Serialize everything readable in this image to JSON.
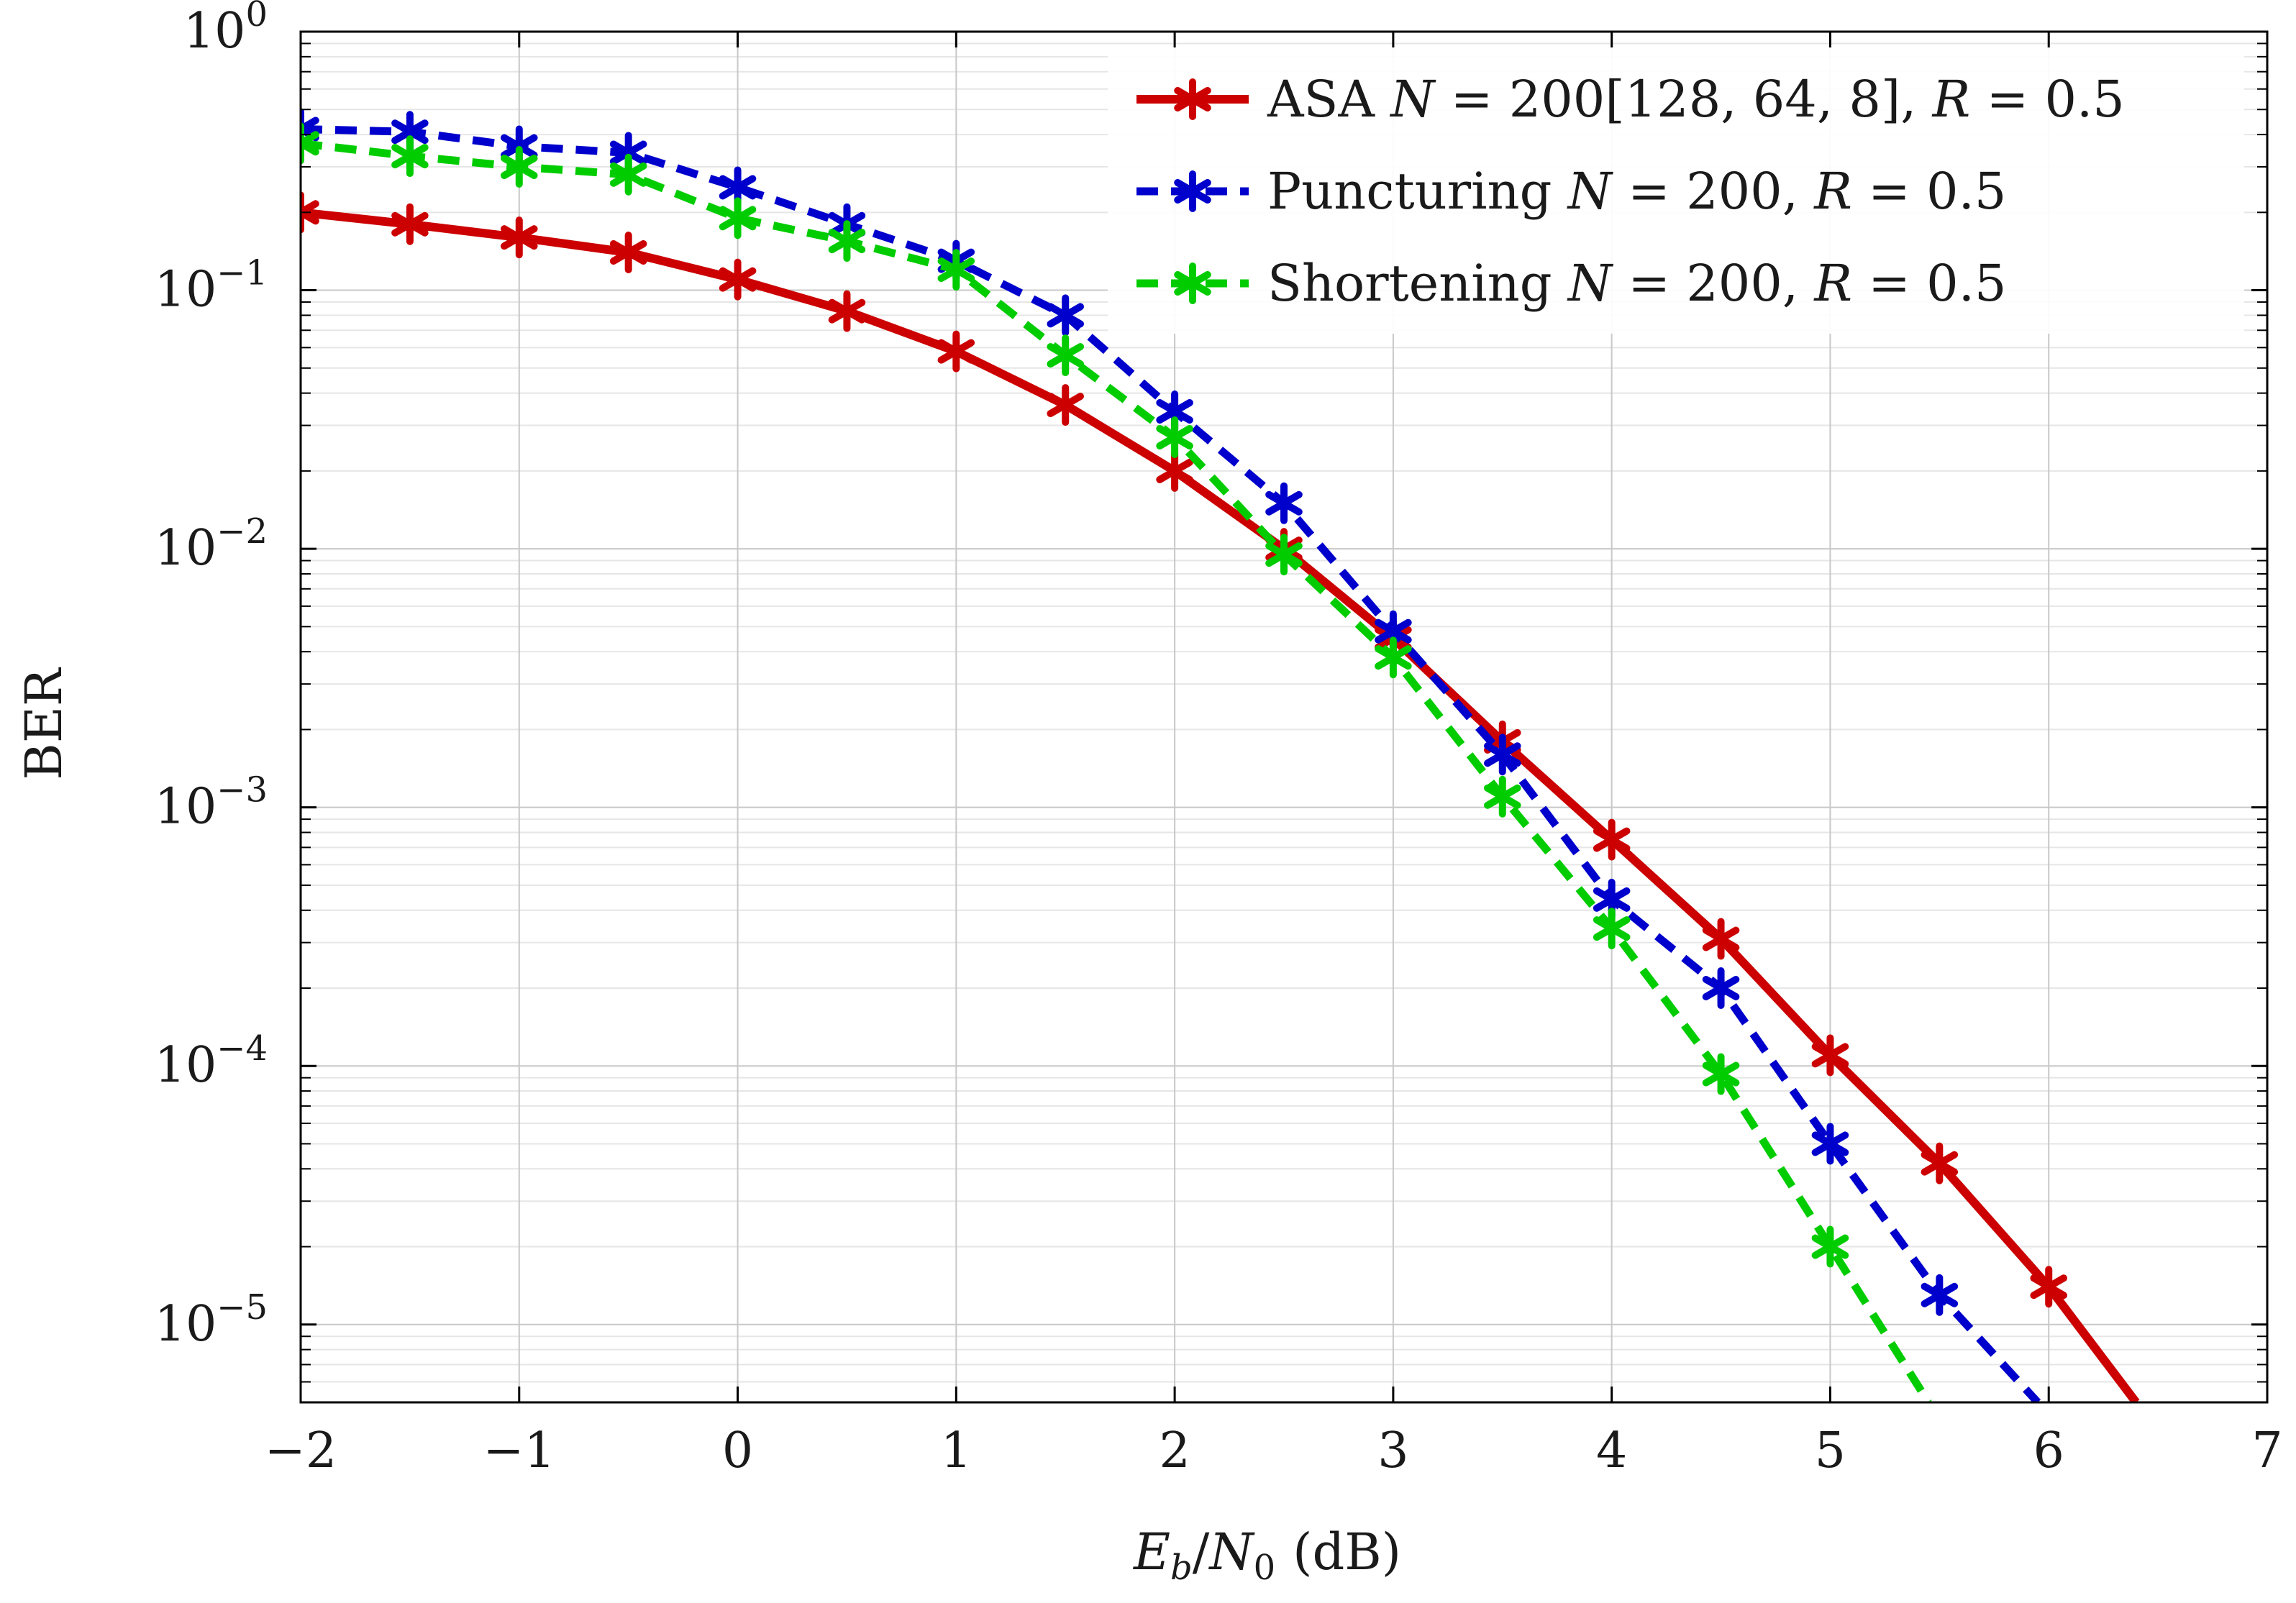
{
  "chart_data": {
    "type": "line",
    "title": "",
    "xlabel": "E_b/N_0 (dB)",
    "xlabel_parts": {
      "E": "E",
      "b": "b",
      "slash": "/",
      "N": "N",
      "zero": "0",
      "unit": "(dB)"
    },
    "ylabel": "BER",
    "xlim": [
      -2,
      7
    ],
    "ylim": [
      5e-06,
      1
    ],
    "yscale": "log",
    "grid": true,
    "legend_position": "top-right",
    "xticks": [
      {
        "v": -2,
        "label": "−2"
      },
      {
        "v": -1,
        "label": "−1"
      },
      {
        "v": 0,
        "label": "0"
      },
      {
        "v": 1,
        "label": "1"
      },
      {
        "v": 2,
        "label": "2"
      },
      {
        "v": 3,
        "label": "3"
      },
      {
        "v": 4,
        "label": "4"
      },
      {
        "v": 5,
        "label": "5"
      },
      {
        "v": 6,
        "label": "6"
      },
      {
        "v": 7,
        "label": "7"
      }
    ],
    "yticks": [
      {
        "v": 1,
        "base": "10",
        "exp": "0"
      },
      {
        "v": 0.1,
        "base": "10",
        "exp": "−1"
      },
      {
        "v": 0.01,
        "base": "10",
        "exp": "−2"
      },
      {
        "v": 0.001,
        "base": "10",
        "exp": "−3"
      },
      {
        "v": 0.0001,
        "base": "10",
        "exp": "−4"
      },
      {
        "v": 1e-05,
        "base": "10",
        "exp": "−5"
      }
    ],
    "series": [
      {
        "key": "asa",
        "name": "ASA N = 200[128, 64, 8], R = 0.5",
        "legend_label": "ASA 𝑁 = 200[128, 64, 8], 𝑅 = 0.5",
        "color": "#cc0000",
        "dashed": false,
        "x": [
          -2,
          -1.5,
          -1,
          -0.5,
          0,
          0.5,
          1,
          1.5,
          2,
          2.5,
          3,
          3.5,
          4,
          4.5,
          5,
          5.5,
          6
        ],
        "y": [
          0.2,
          0.18,
          0.16,
          0.14,
          0.11,
          0.083,
          0.058,
          0.036,
          0.02,
          0.01,
          0.0045,
          0.0018,
          0.00075,
          0.00031,
          0.00011,
          4.2e-05,
          1.4e-05
        ],
        "tail": [
          6.4,
          5e-06
        ]
      },
      {
        "key": "puncturing",
        "name": "Puncturing N = 200, R = 0.5",
        "legend_label": "Puncturing 𝑁 = 200, 𝑅 = 0.5",
        "color": "#0000cc",
        "dashed": true,
        "x": [
          -2,
          -1.5,
          -1,
          -0.5,
          0,
          0.5,
          1,
          1.5,
          2,
          2.5,
          3,
          3.5,
          4,
          4.5,
          5,
          5.5
        ],
        "y": [
          0.42,
          0.41,
          0.36,
          0.34,
          0.25,
          0.18,
          0.13,
          0.08,
          0.034,
          0.015,
          0.0048,
          0.0016,
          0.00044,
          0.0002,
          5e-05,
          1.3e-05
        ],
        "tail": [
          5.95,
          5e-06
        ]
      },
      {
        "key": "shortening",
        "name": "Shortening N = 200, R = 0.5",
        "legend_label": "Shortening 𝑁 = 200, 𝑅 = 0.5",
        "color": "#00cc00",
        "dashed": true,
        "x": [
          -2,
          -1.5,
          -1,
          -0.5,
          0,
          0.5,
          1,
          1.5,
          2,
          2.5,
          3,
          3.5,
          4,
          4.5,
          5
        ],
        "y": [
          0.37,
          0.33,
          0.3,
          0.28,
          0.19,
          0.155,
          0.12,
          0.056,
          0.027,
          0.0095,
          0.0038,
          0.0011,
          0.00034,
          9.3e-05,
          2e-05
        ],
        "tail": [
          5.45,
          5e-06
        ]
      }
    ]
  }
}
